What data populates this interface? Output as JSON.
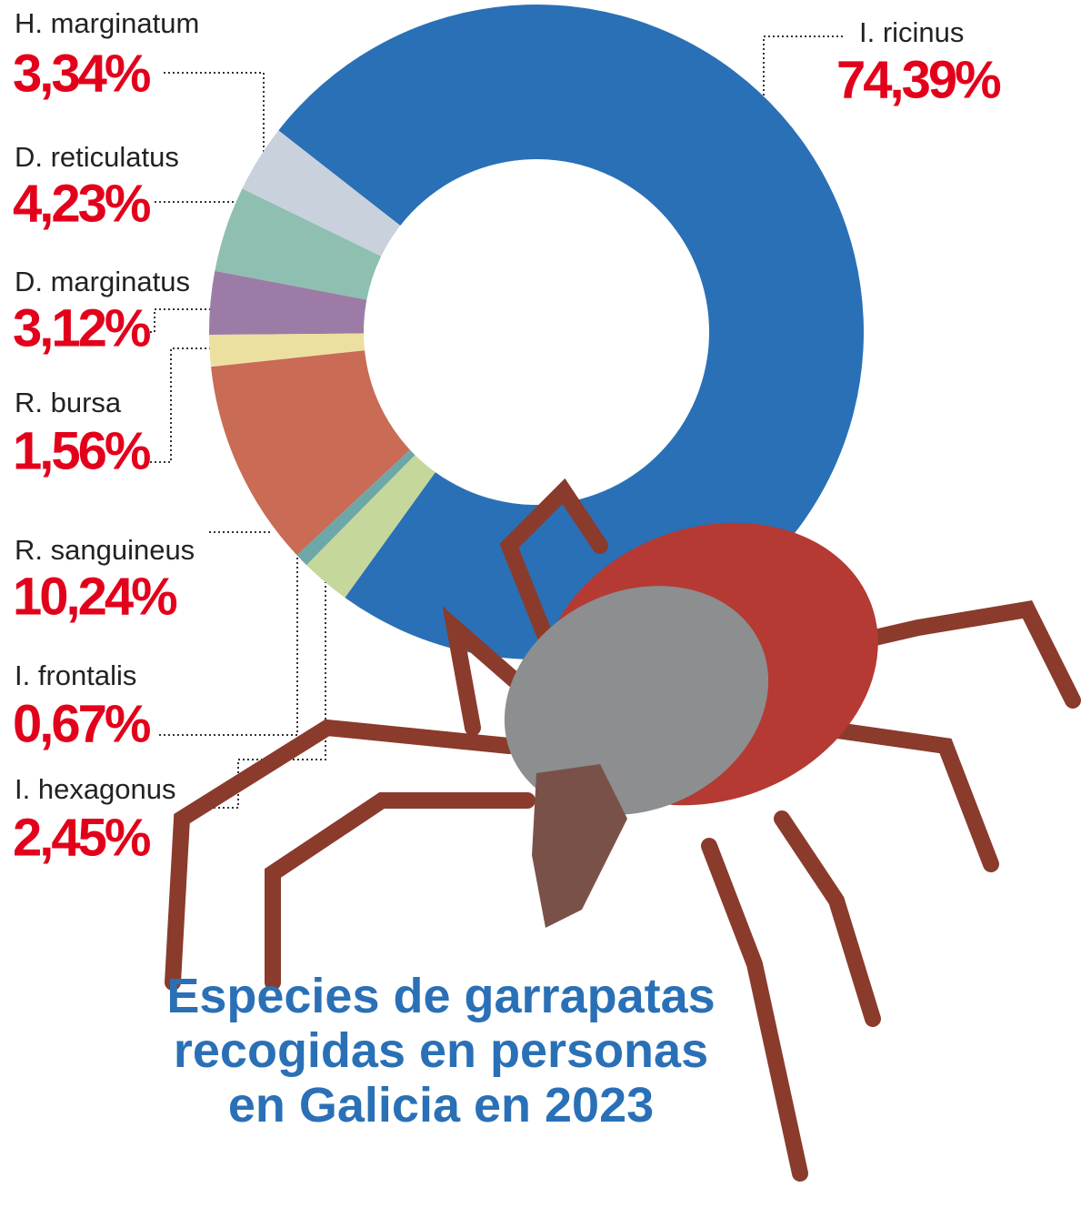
{
  "chart_data": {
    "type": "donut",
    "title": "Especies de garrapatas recogidas en personas en Galicia en 2023",
    "categories": [
      "I. ricinus",
      "H. marginatum",
      "D. reticulatus",
      "D. marginatus",
      "R. bursa",
      "R. sanguineus",
      "I. frontalis",
      "I. hexagonus"
    ],
    "values": [
      74.39,
      3.34,
      4.23,
      3.12,
      1.56,
      10.24,
      0.67,
      2.45
    ],
    "value_labels": [
      "74,39%",
      "3,34%",
      "4,23%",
      "3,12%",
      "1,56%",
      "10,24%",
      "0,67%",
      "2,45%"
    ],
    "colors": [
      "#2a70b6",
      "#c9d1dd",
      "#8fbfb1",
      "#9c7ca6",
      "#ece0a0",
      "#c96b55",
      "#6ea7a8",
      "#c6d79b"
    ]
  }
}
